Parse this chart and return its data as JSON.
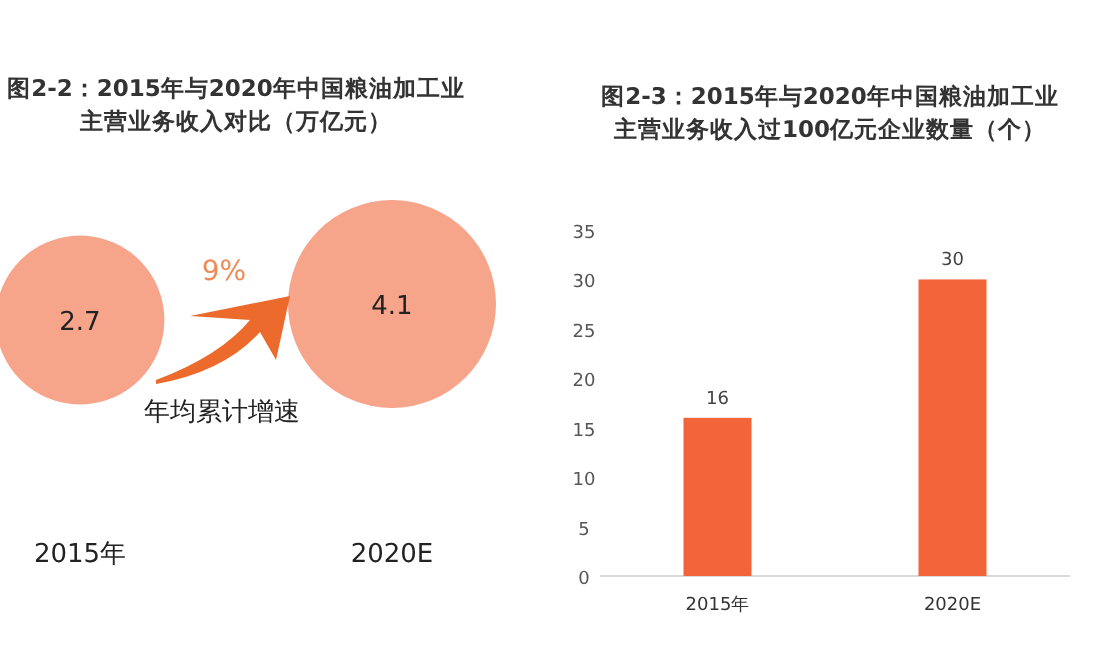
{
  "chart_data": [
    {
      "type": "other",
      "title": "图2-2：2015年与2020年中国粮油加工业主营业务收入对比（万亿元）",
      "categories": [
        "2015年",
        "2020E"
      ],
      "values": [
        2.7,
        4.1
      ],
      "color": "#f6a58a",
      "data_labels": true,
      "annotations": [
        "9%",
        "年均累计增速"
      ]
    },
    {
      "type": "bar",
      "title": "图2-3：2015年与2020年中国粮油加工业主营业务收入过100亿元企业数量（个）",
      "categories": [
        "2015年",
        "2020E"
      ],
      "values": [
        16,
        30
      ],
      "color": "#f4643a",
      "ylim": [
        0,
        35
      ],
      "yticks": [
        0,
        5,
        10,
        15,
        20,
        25,
        30,
        35
      ],
      "data_labels": true,
      "grid": false
    }
  ]
}
